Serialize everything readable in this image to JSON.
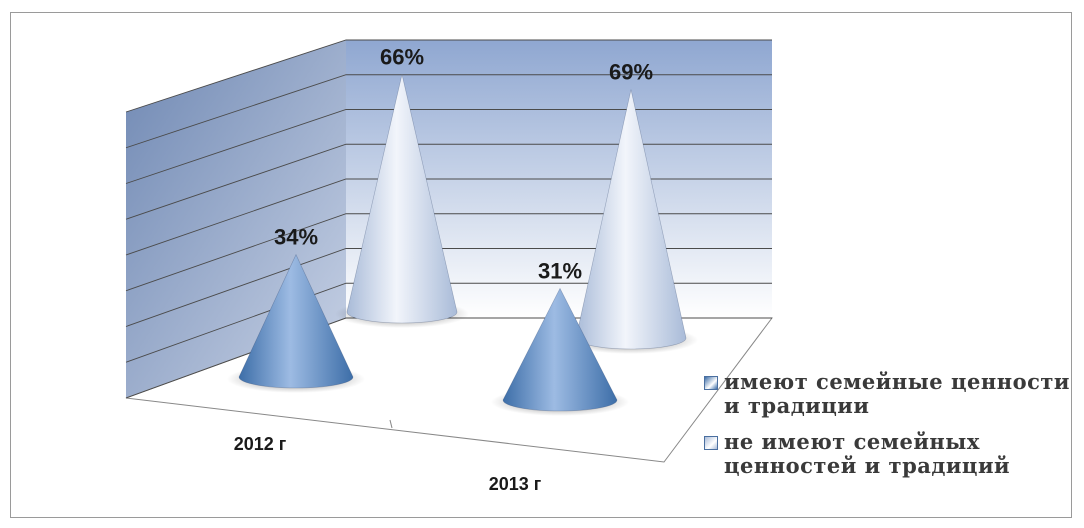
{
  "chart_data": {
    "type": "bar",
    "categories": [
      "2012 г",
      "2013 г"
    ],
    "series": [
      {
        "name": "имеют семейные ценности и традиции",
        "values": [
          34,
          31
        ],
        "labels": [
          "34%",
          "31%"
        ],
        "color": "#3d6ea8"
      },
      {
        "name": "не имеют семейных ценностей и традиций",
        "values": [
          66,
          69
        ],
        "labels": [
          "66%",
          "69%"
        ],
        "color": "#a9bbd8"
      }
    ],
    "ylim": [
      0,
      80
    ],
    "grid": true,
    "legend": "bottom-right"
  },
  "colors": {
    "backwall_top": "#8fa7d1",
    "backwall_bottom": "#ffffff",
    "sidewall": "#6f88b3",
    "floor": "#ffffff",
    "gridline": "#4b4b4b",
    "label": "#1a1a1a"
  }
}
